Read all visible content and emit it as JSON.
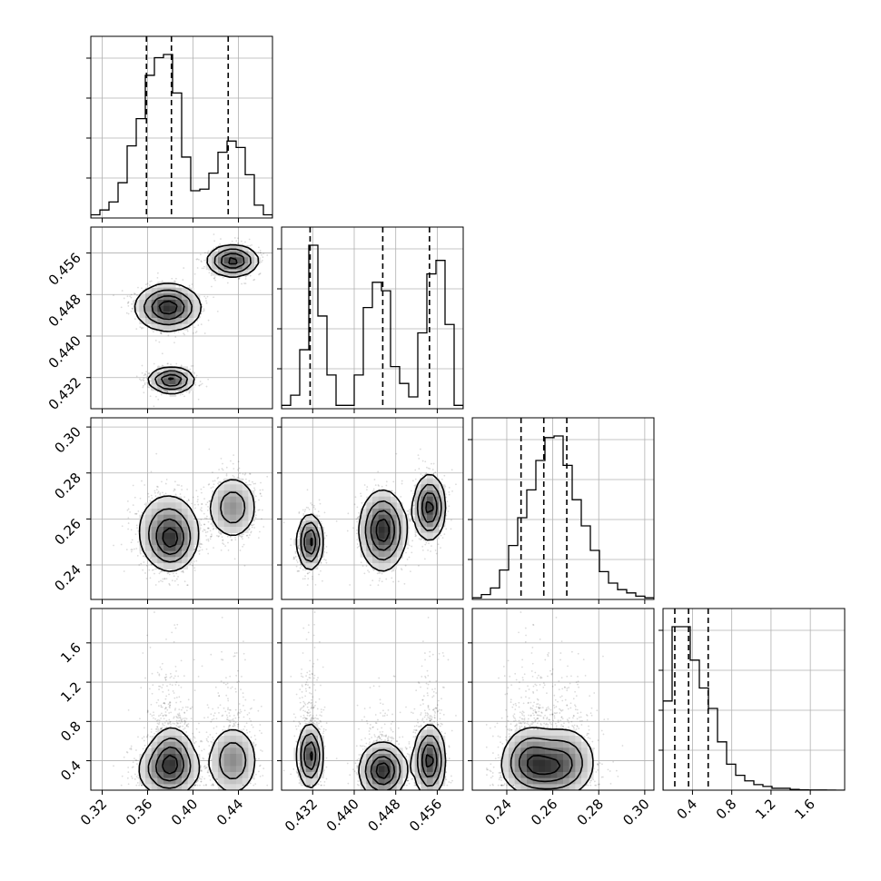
{
  "chart_data": {
    "type": "corner",
    "grid": true,
    "colors": {
      "line": "#000000",
      "grid": "#b0b0b0",
      "density": "#000000"
    },
    "parameters": [
      {
        "range": [
          0.31,
          0.47
        ],
        "ticks": [
          0.32,
          0.36,
          0.4,
          0.44
        ],
        "tick_labels": [
          "0.32",
          "0.36",
          "0.40",
          "0.44"
        ],
        "quantiles": [
          0.359,
          0.381,
          0.431
        ],
        "hist": [
          0.02,
          0.05,
          0.1,
          0.22,
          0.45,
          0.62,
          0.89,
          1.0,
          1.02,
          0.78,
          0.38,
          0.17,
          0.18,
          0.28,
          0.41,
          0.48,
          0.44,
          0.27,
          0.08,
          0.02
        ],
        "modes": [
          {
            "mean": [
              0.378,
              0.4455,
              0.255,
              0.3
            ],
            "sd": [
              0.014,
              0.0022,
              0.0085,
              0.14
            ],
            "weight": 0.35
          },
          {
            "mean": [
              0.381,
              0.4315,
              0.25,
              0.45
            ],
            "sd": [
              0.01,
              0.0012,
              0.006,
              0.16
            ],
            "weight": 0.32
          },
          {
            "mean": [
              0.435,
              0.4545,
              0.265,
              0.4
            ],
            "sd": [
              0.011,
              0.0015,
              0.007,
              0.18
            ],
            "weight": 0.33
          }
        ]
      },
      {
        "range": [
          0.426,
          0.461
        ],
        "ticks": [
          0.432,
          0.44,
          0.448,
          0.456
        ],
        "tick_labels": [
          "0.432",
          "0.440",
          "0.448",
          "0.456"
        ],
        "quantiles": [
          0.4315,
          0.4455,
          0.4545
        ],
        "hist": [
          0.02,
          0.08,
          0.35,
          0.97,
          0.55,
          0.2,
          0.02,
          0.02,
          0.2,
          0.6,
          0.75,
          0.7,
          0.25,
          0.15,
          0.07,
          0.45,
          0.8,
          0.88,
          0.5,
          0.02
        ]
      },
      {
        "range": [
          0.225,
          0.304
        ],
        "ticks": [
          0.24,
          0.26,
          0.28,
          0.3
        ],
        "tick_labels": [
          "0.24",
          "0.26",
          "0.28",
          "0.30"
        ],
        "quantiles": [
          0.2462,
          0.2561,
          0.2661
        ],
        "hist": [
          0.01,
          0.03,
          0.07,
          0.18,
          0.33,
          0.5,
          0.67,
          0.85,
          0.99,
          1.0,
          0.82,
          0.61,
          0.45,
          0.3,
          0.17,
          0.1,
          0.06,
          0.04,
          0.02,
          0.01
        ]
      },
      {
        "range": [
          0.1,
          1.95
        ],
        "ticks": [
          0.4,
          0.8,
          1.2,
          1.6
        ],
        "tick_labels": [
          "0.4",
          "0.8",
          "1.2",
          "1.6"
        ],
        "quantiles": [
          0.22,
          0.36,
          0.56
        ],
        "hist": [
          0.48,
          0.88,
          0.88,
          0.7,
          0.55,
          0.44,
          0.26,
          0.14,
          0.08,
          0.05,
          0.03,
          0.02,
          0.01,
          0.01,
          0.004,
          0.002,
          0.001,
          0.001,
          0.0005,
          0.0
        ]
      }
    ],
    "tick_label_rotation_deg": 45
  }
}
